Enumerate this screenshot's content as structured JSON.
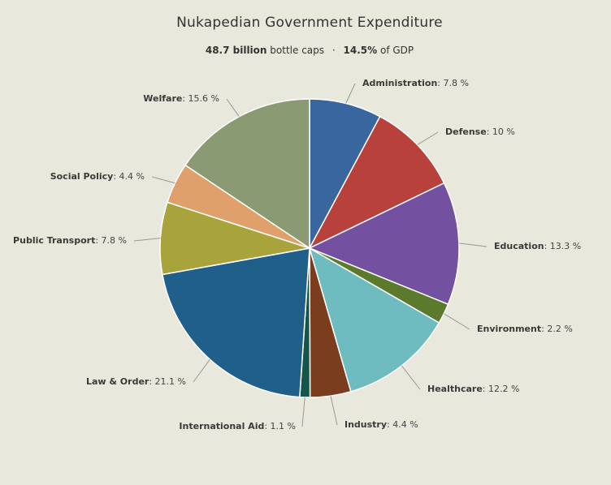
{
  "title": "Nukapedian Government Expenditure",
  "subtitle": {
    "total_value": "48.7 billion",
    "total_unit": "bottle caps",
    "separator": "·",
    "gdp_value": "14.5%",
    "gdp_unit": "of GDP"
  },
  "chart_data": {
    "type": "pie",
    "title": "Nukapedian Government Expenditure",
    "unit": "%",
    "start_at": "12 o'clock, clockwise",
    "slices": [
      {
        "label": "Administration",
        "value": 7.8,
        "display": "7.8 %",
        "color": "#3a66a0"
      },
      {
        "label": "Defense",
        "value": 10,
        "display": "10 %",
        "color": "#b9413c"
      },
      {
        "label": "Education",
        "value": 13.3,
        "display": "13.3 %",
        "color": "#7351a0"
      },
      {
        "label": "Environment",
        "value": 2.2,
        "display": "2.2 %",
        "color": "#5c7a2c"
      },
      {
        "label": "Healthcare",
        "value": 12.2,
        "display": "12.2 %",
        "color": "#6fbcc0"
      },
      {
        "label": "Industry",
        "value": 4.4,
        "display": "4.4 %",
        "color": "#7a3d1e"
      },
      {
        "label": "International Aid",
        "value": 1.1,
        "display": "1.1 %",
        "color": "#16554a"
      },
      {
        "label": "Law & Order",
        "value": 21.1,
        "display": "21.1 %",
        "color": "#1f5f8a"
      },
      {
        "label": "Public Transport",
        "value": 7.8,
        "display": "7.8 %",
        "color": "#a9a33c"
      },
      {
        "label": "Social Policy",
        "value": 4.4,
        "display": "4.4 %",
        "color": "#e0a06b"
      },
      {
        "label": "Welfare",
        "value": 15.6,
        "display": "15.6 %",
        "color": "#8a9a72"
      }
    ]
  }
}
